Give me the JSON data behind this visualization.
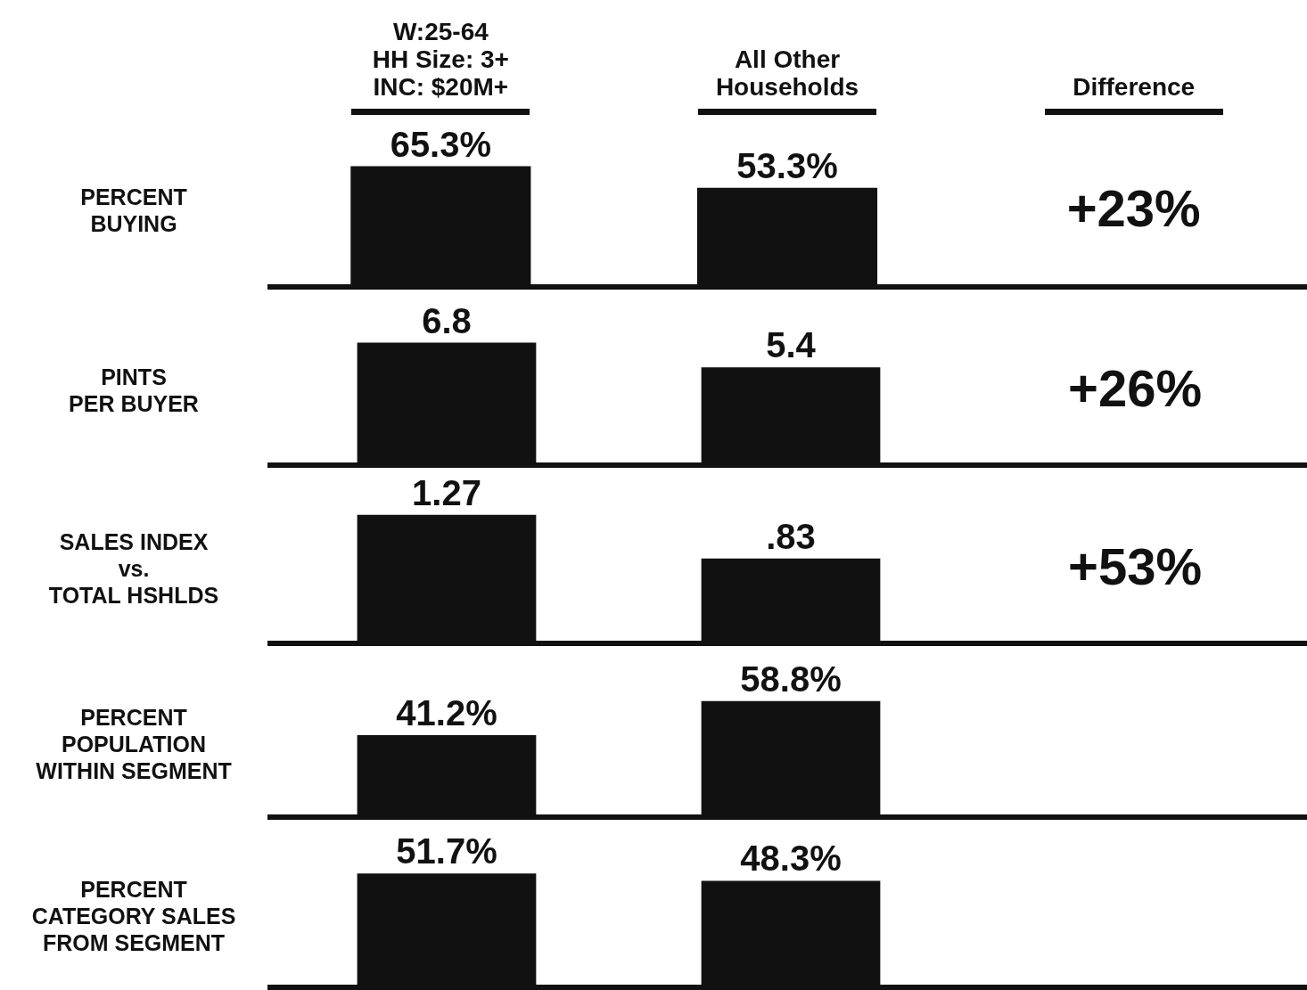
{
  "chart_data": [
    {
      "type": "bar",
      "title": "PERCENT\nBUYING",
      "categories": [
        "W:25-64\nHH Size: 3+\nINC: $20M+",
        "All Other\nHouseholds",
        "Difference"
      ],
      "values": [
        65.3,
        53.3,
        null
      ],
      "value_labels": [
        "65.3%",
        "53.3%",
        null
      ],
      "color": "#111111",
      "annotations": [
        "+23%"
      ],
      "tick_labels": "x"
    },
    {
      "type": "bar",
      "title": "PINTS\nPER BUYER",
      "categories": [
        null,
        null,
        null
      ],
      "values": [
        6.8,
        5.4,
        null
      ],
      "value_labels": [
        "6.8",
        "5.4",
        null
      ],
      "color": "#111111",
      "annotations": [
        "+26%"
      ]
    },
    {
      "type": "bar",
      "title": "SALES INDEX\nvs.\nTOTAL HSHLDS",
      "categories": [
        null,
        null,
        null
      ],
      "values": [
        1.27,
        0.83,
        null
      ],
      "value_labels": [
        "1.27",
        ".83",
        null
      ],
      "color": "#111111",
      "annotations": [
        "+53%"
      ]
    },
    {
      "type": "bar",
      "title": "PERCENT\nPOPULATION\nWITHIN SEGMENT",
      "categories": [
        null,
        null,
        null
      ],
      "values": [
        41.2,
        58.8,
        null
      ],
      "value_labels": [
        "41.2%",
        "58.8%",
        null
      ],
      "color": "#111111"
    },
    {
      "type": "bar",
      "title": "PERCENT\nCATEGORY SALES\nFROM SEGMENT",
      "categories": [
        null,
        null,
        null
      ],
      "values": [
        51.7,
        48.3,
        null
      ],
      "value_labels": [
        "51.7%",
        "48.3%",
        null
      ],
      "color": "#111111"
    }
  ]
}
